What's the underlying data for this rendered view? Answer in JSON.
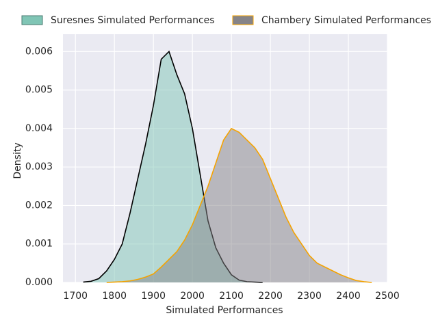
{
  "chart_data": {
    "type": "kde",
    "xlabel": "Simulated Performances",
    "ylabel": "Density",
    "x": [
      1720,
      1740,
      1760,
      1780,
      1800,
      1820,
      1840,
      1860,
      1880,
      1900,
      1920,
      1940,
      1960,
      1980,
      2000,
      2020,
      2040,
      2060,
      2080,
      2100,
      2120,
      2140,
      2160,
      2180,
      2200,
      2220,
      2240,
      2260,
      2280,
      2300,
      2320,
      2340,
      2360,
      2380,
      2400,
      2420,
      2440,
      2460
    ],
    "series": [
      {
        "name": "Suresnes Simulated Performances",
        "color": "#80c5b5",
        "edgecolor": "#000000",
        "values": [
          1e-05,
          3e-05,
          0.0001,
          0.0003,
          0.0006,
          0.001,
          0.0018,
          0.0027,
          0.0036,
          0.0046,
          0.0058,
          0.006,
          0.0054,
          0.0049,
          0.004,
          0.0028,
          0.0016,
          0.0009,
          0.0005,
          0.0002,
          6e-05,
          2e-05,
          1e-05,
          0,
          null,
          null,
          null,
          null,
          null,
          null,
          null,
          null,
          null,
          null,
          null,
          null,
          null,
          null
        ]
      },
      {
        "name": "Chambery Simulated Performances",
        "color": "#868488",
        "edgecolor": "#f5a300",
        "values": [
          null,
          null,
          null,
          0,
          1e-05,
          2e-05,
          4e-05,
          8e-05,
          0.00014,
          0.00022,
          0.0004,
          0.0006,
          0.0008,
          0.0011,
          0.0015,
          0.002,
          0.0025,
          0.0031,
          0.0037,
          0.004,
          0.0039,
          0.0037,
          0.0035,
          0.0032,
          0.0027,
          0.0022,
          0.0017,
          0.0013,
          0.001,
          0.0007,
          0.0005,
          0.0004,
          0.0003,
          0.0002,
          0.00012,
          5e-05,
          2e-05,
          0
        ]
      }
    ],
    "xlim": [
      1668,
      2500
    ],
    "ylim": [
      0,
      0.00645
    ],
    "xticks": [
      1700,
      1800,
      1900,
      2000,
      2100,
      2200,
      2300,
      2400,
      2500
    ],
    "yticks": [
      {
        "value": 0,
        "label": "0.000"
      },
      {
        "value": 0.001,
        "label": "0.001"
      },
      {
        "value": 0.002,
        "label": "0.002"
      },
      {
        "value": 0.003,
        "label": "0.003"
      },
      {
        "value": 0.004,
        "label": "0.004"
      },
      {
        "value": 0.005,
        "label": "0.005"
      },
      {
        "value": 0.006,
        "label": "0.006"
      }
    ],
    "grid": true
  }
}
